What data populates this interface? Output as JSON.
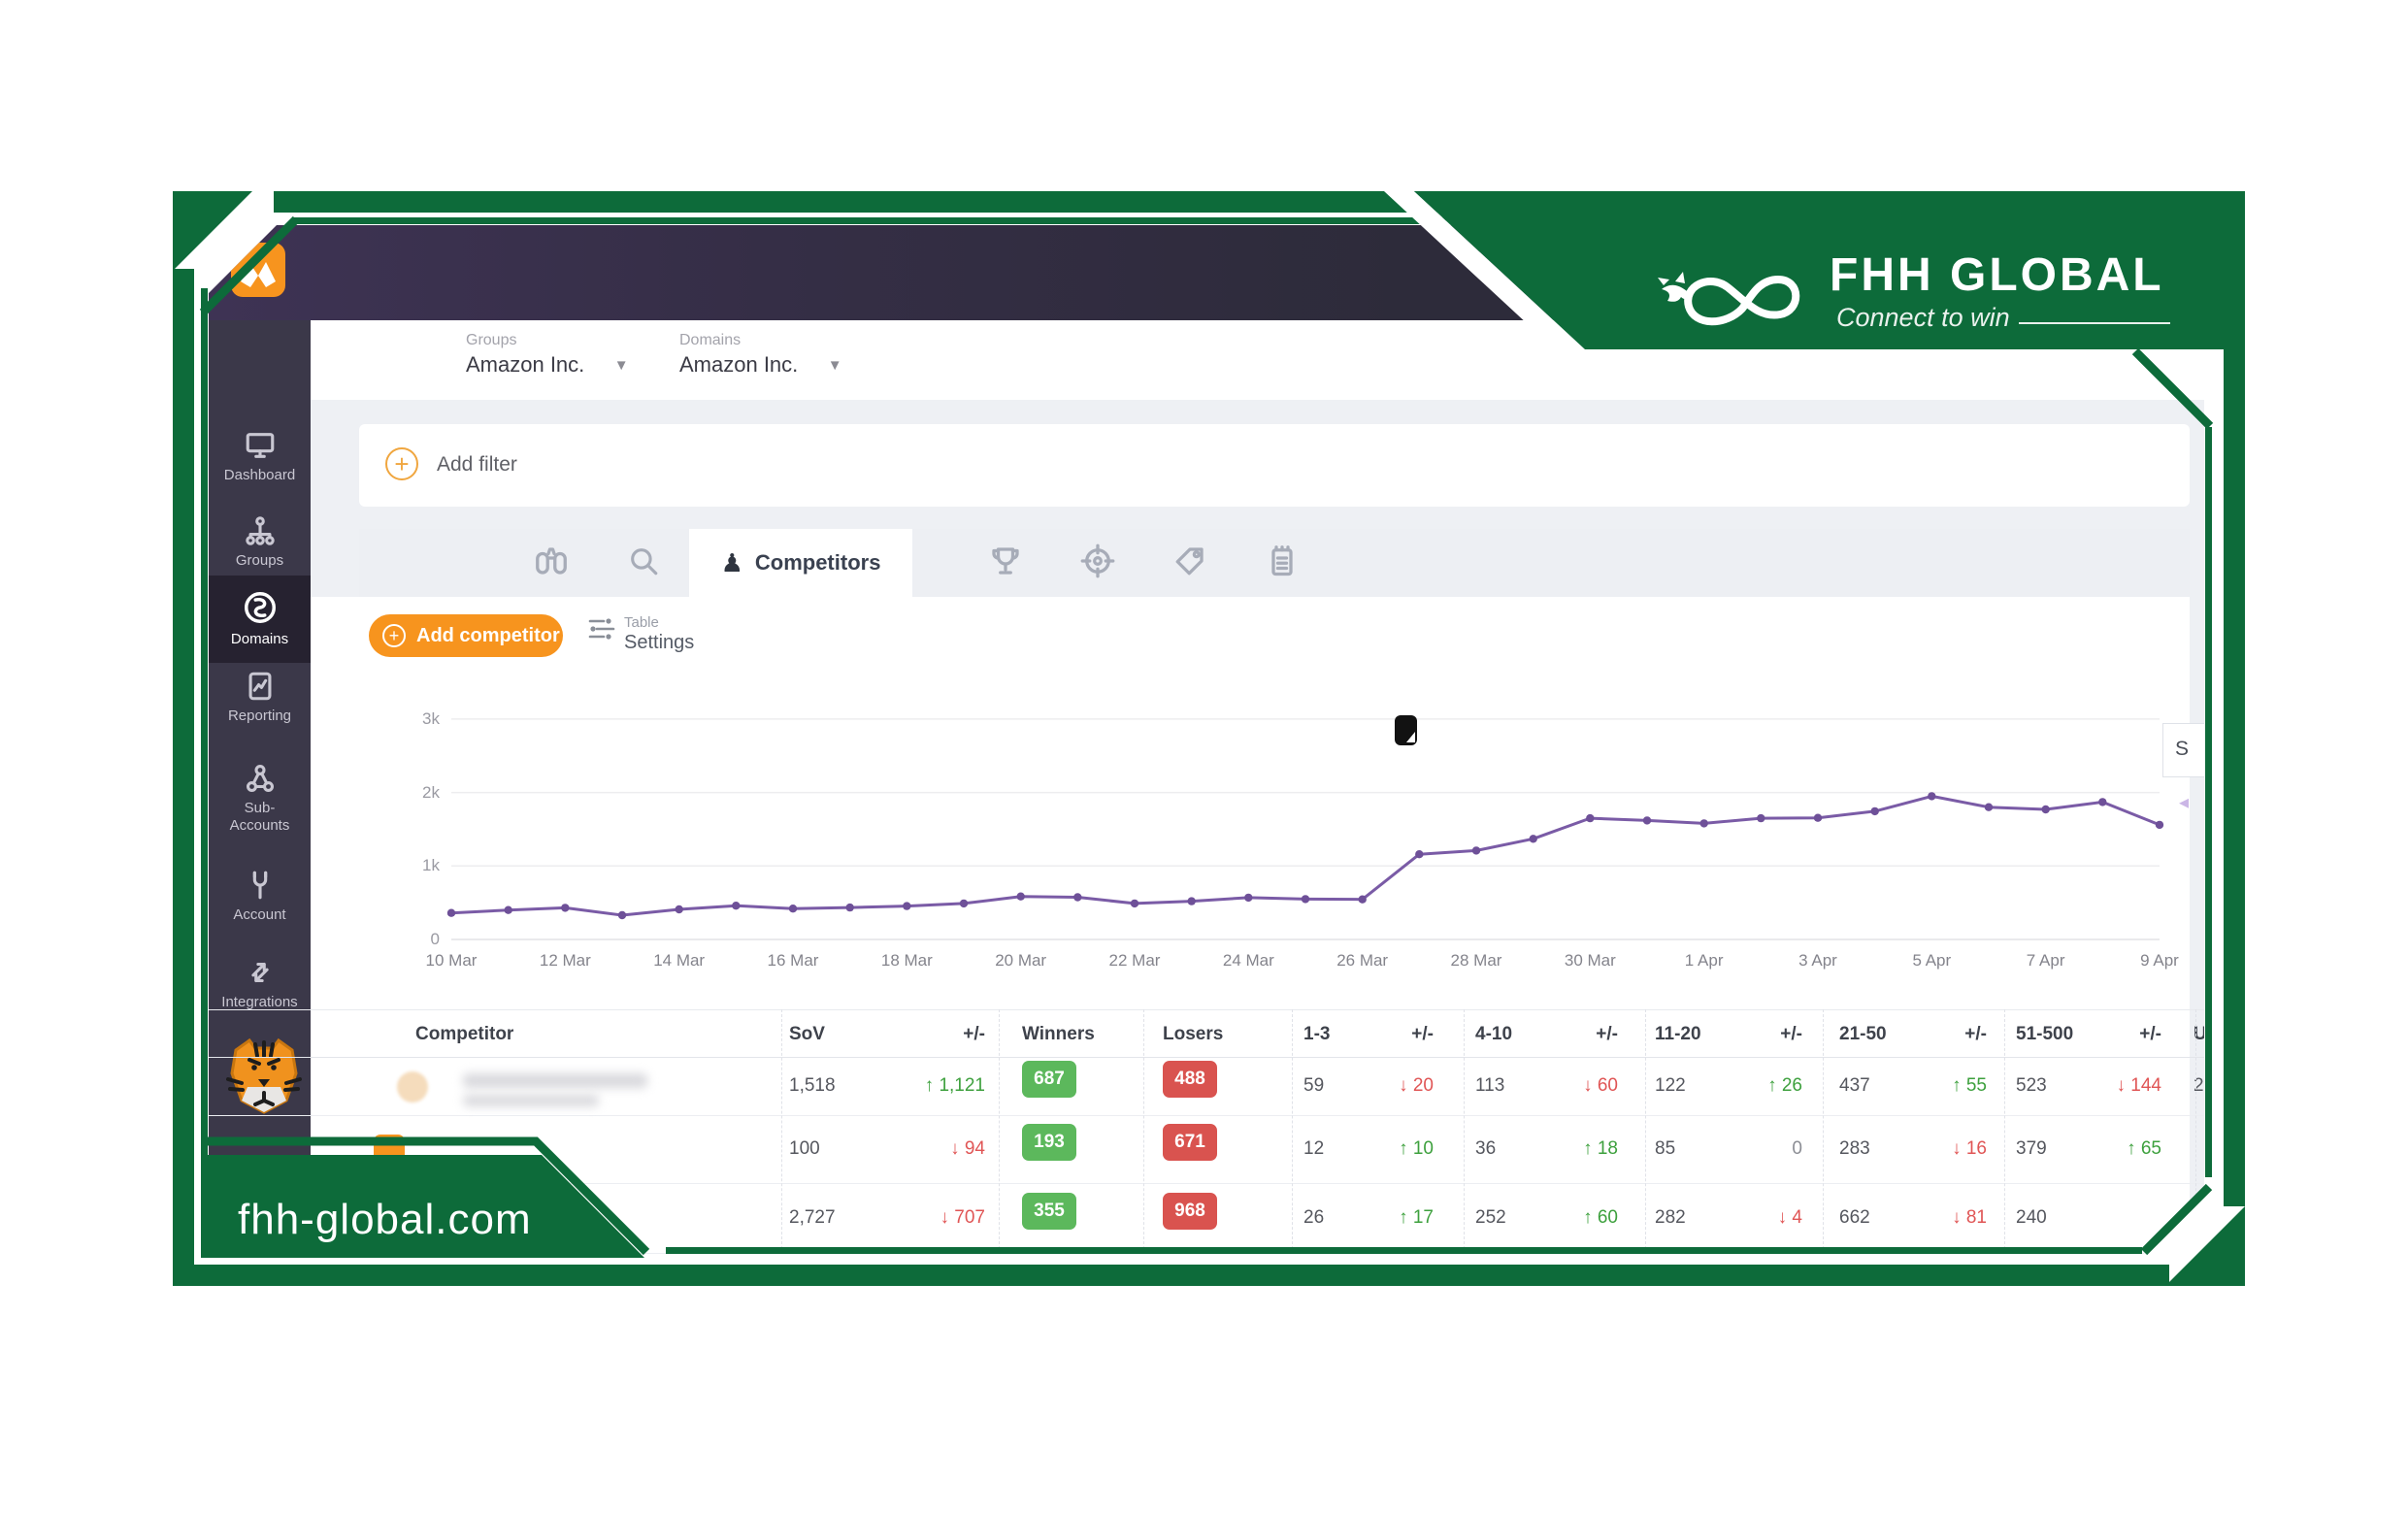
{
  "branding": {
    "name": "FHH GLOBAL",
    "tagline": "Connect to win",
    "website": "fhh-global.com",
    "frame_green": "#0d6b3a",
    "dragon_logo_icon": "dragon-infinity-icon"
  },
  "app": {
    "logo_icon": "accuranker-app-icon",
    "header": {
      "groups_label": "Groups",
      "groups_value": "Amazon Inc.",
      "domains_label": "Domains",
      "domains_value": "Amazon Inc."
    },
    "sidebar": {
      "items": [
        {
          "label": "Dashboard",
          "icon": "monitor-icon",
          "active": false
        },
        {
          "label": "Groups",
          "icon": "sitemap-icon",
          "active": false
        },
        {
          "label": "Domains",
          "icon": "globe-swirl-icon",
          "active": true
        },
        {
          "label": "Reporting",
          "icon": "report-chart-icon",
          "active": false
        },
        {
          "label": "Sub-Accounts",
          "icon": "network-nodes-icon",
          "active": false
        },
        {
          "label": "Account",
          "icon": "wrench-icon",
          "active": false
        },
        {
          "label": "Integrations",
          "icon": "exchange-arrows-icon",
          "active": false
        }
      ],
      "mascot_icon": "tiger-mascot"
    },
    "filter_bar": {
      "add_filter_label": "Add filter"
    },
    "tabs": {
      "items": [
        {
          "icon": "binoculars-icon",
          "label": "",
          "active": false
        },
        {
          "icon": "search-icon",
          "label": "",
          "active": false
        },
        {
          "icon": "pawn-icon",
          "label": "Competitors",
          "active": true
        },
        {
          "icon": "trophy-icon",
          "label": "",
          "active": false
        },
        {
          "icon": "target-icon",
          "label": "",
          "active": false
        },
        {
          "icon": "tag-icon",
          "label": "",
          "active": false
        },
        {
          "icon": "notepad-icon",
          "label": "",
          "active": false
        }
      ]
    },
    "actions": {
      "add_competitor_label": "Add competitor",
      "table_settings_small": "Table",
      "table_settings_label": "Settings"
    },
    "clipped_panel_label": "S",
    "colors": {
      "orange": "#f7941e",
      "badge_green": "#5cb85c",
      "badge_red": "#d9534f",
      "up_green": "#3da03d",
      "down_red": "#e05555",
      "chart_line_purple": "#7a5ba6"
    }
  },
  "chart_data": {
    "type": "line",
    "title": "",
    "xlabel": "",
    "ylabel": "",
    "ylim": [
      0,
      3000
    ],
    "grid": true,
    "legend_position": "none",
    "y_tick_labels": [
      "0",
      "1k",
      "2k",
      "3k"
    ],
    "x_tick_labels": [
      "10 Mar",
      "12 Mar",
      "14 Mar",
      "16 Mar",
      "18 Mar",
      "20 Mar",
      "22 Mar",
      "24 Mar",
      "26 Mar",
      "28 Mar",
      "30 Mar",
      "1 Apr",
      "3 Apr",
      "5 Apr",
      "7 Apr",
      "9 Apr"
    ],
    "x": [
      "10 Mar",
      "11 Mar",
      "12 Mar",
      "13 Mar",
      "14 Mar",
      "15 Mar",
      "16 Mar",
      "17 Mar",
      "18 Mar",
      "19 Mar",
      "20 Mar",
      "21 Mar",
      "22 Mar",
      "23 Mar",
      "24 Mar",
      "25 Mar",
      "26 Mar",
      "27 Mar",
      "28 Mar",
      "29 Mar",
      "30 Mar",
      "31 Mar",
      "1 Apr",
      "2 Apr",
      "3 Apr",
      "4 Apr",
      "5 Apr",
      "6 Apr",
      "7 Apr",
      "8 Apr",
      "9 Apr"
    ],
    "series": [
      {
        "name": "Share of Voice",
        "values": [
          360,
          400,
          430,
          330,
          410,
          460,
          420,
          435,
          455,
          490,
          585,
          575,
          490,
          520,
          570,
          550,
          545,
          1160,
          1210,
          1370,
          1650,
          1620,
          1580,
          1650,
          1655,
          1745,
          1950,
          1800,
          1770,
          1870,
          1560
        ]
      }
    ]
  },
  "table": {
    "columns": [
      "Competitor",
      "SoV",
      "+/-",
      "Winners",
      "Losers",
      "1-3",
      "+/-",
      "4-10",
      "+/-",
      "11-20",
      "+/-",
      "21-50",
      "+/-",
      "51-500",
      "+/-",
      "U"
    ],
    "rows": [
      {
        "name_redacted": true,
        "favicon": "cream-circle",
        "sov": "1,518",
        "sov_pm": {
          "v": "1,121",
          "dir": "up"
        },
        "winners": "687",
        "losers": "488",
        "pairs": [
          [
            "59",
            {
              "v": "20",
              "dir": "down"
            }
          ],
          [
            "113",
            {
              "v": "60",
              "dir": "down"
            }
          ],
          [
            "122",
            {
              "v": "26",
              "dir": "up"
            }
          ],
          [
            "437",
            {
              "v": "55",
              "dir": "up"
            }
          ],
          [
            "523",
            {
              "v": "144",
              "dir": "down"
            }
          ]
        ],
        "u": "2"
      },
      {
        "name_redacted": true,
        "favicon": "orange-square",
        "sov": "100",
        "sov_pm": {
          "v": "94",
          "dir": "down"
        },
        "winners": "193",
        "losers": "671",
        "pairs": [
          [
            "12",
            {
              "v": "10",
              "dir": "up"
            }
          ],
          [
            "36",
            {
              "v": "18",
              "dir": "up"
            }
          ],
          [
            "85",
            {
              "v": "0",
              "dir": "zero"
            }
          ],
          [
            "283",
            {
              "v": "16",
              "dir": "down"
            }
          ],
          [
            "379",
            {
              "v": "65",
              "dir": "up"
            }
          ]
        ],
        "u": ""
      },
      {
        "name_redacted": true,
        "favicon": "",
        "sov": "2,727",
        "sov_pm": {
          "v": "707",
          "dir": "down"
        },
        "winners": "355",
        "losers": "968",
        "pairs": [
          [
            "26",
            {
              "v": "17",
              "dir": "up"
            }
          ],
          [
            "252",
            {
              "v": "60",
              "dir": "up"
            }
          ],
          [
            "282",
            {
              "v": "4",
              "dir": "down"
            }
          ],
          [
            "662",
            {
              "v": "81",
              "dir": "down"
            }
          ],
          [
            "240",
            null
          ]
        ],
        "u": ""
      }
    ]
  }
}
